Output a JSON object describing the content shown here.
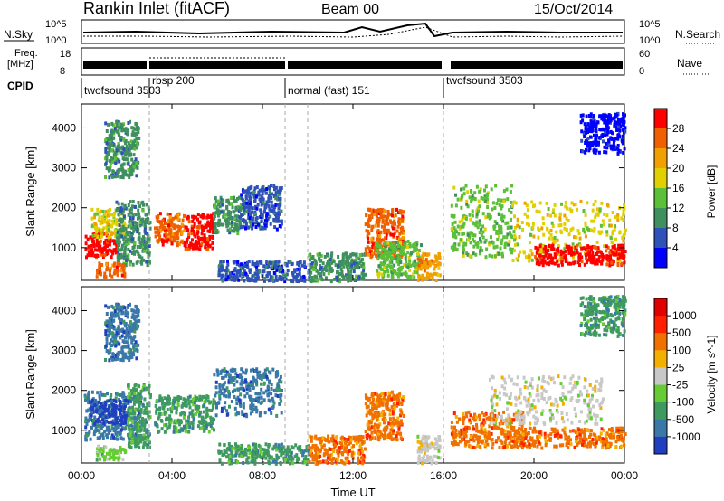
{
  "header": {
    "station": "Rankin Inlet (fitACF)",
    "beam": "Beam 00",
    "date": "15/Oct/2014"
  },
  "status_panels": {
    "nsky_label": "N.Sky",
    "nsky_ticks": [
      "10^5",
      "10^0"
    ],
    "nsearch_label": "N.Search",
    "nsearch_ticks": [
      "10^5",
      "10^0"
    ],
    "freq_label": [
      "Freq.",
      "[MHz]"
    ],
    "freq_ticks": [
      "18",
      "8"
    ],
    "nave_label": "Nave",
    "nave_ticks": [
      "60",
      "0"
    ],
    "cpid_label": "CPID",
    "cpid_segments": [
      {
        "label": "twofsound 3503",
        "start_h": 0.0,
        "end_h": 3.0
      },
      {
        "label": "rbsp 200",
        "start_h": 3.0,
        "end_h": 9.0
      },
      {
        "label": "normal (fast) 151",
        "start_h": 9.0,
        "end_h": 16.0
      },
      {
        "label": "twofsound 3503",
        "start_h": 16.0,
        "end_h": 24.0
      }
    ]
  },
  "chart_data": [
    {
      "type": "heatmap",
      "title": "",
      "xlabel": "",
      "ylabel": "Slant Range [km]",
      "xlim": [
        0,
        24
      ],
      "ylim": [
        180,
        4600
      ],
      "yticks": [
        1000,
        2000,
        3000,
        4000
      ],
      "colorbar": {
        "label": "Power [dB]",
        "ticks": [
          "4",
          "8",
          "12",
          "16",
          "20",
          "24",
          "28"
        ],
        "colors": [
          "#0000ff",
          "#2e52b8",
          "#3f8f5f",
          "#5cbf3a",
          "#e0d000",
          "#f0a000",
          "#f06000",
          "#ff0000"
        ]
      },
      "blobs": [
        {
          "t0": 0.1,
          "t1": 1.5,
          "r0": 800,
          "r1": 1400,
          "c": 7
        },
        {
          "t0": 0.4,
          "t1": 1.9,
          "r0": 1300,
          "r1": 2000,
          "c": 4
        },
        {
          "t0": 1.5,
          "t1": 3.0,
          "r0": 600,
          "r1": 2200,
          "c": 2
        },
        {
          "t0": 0.6,
          "t1": 1.9,
          "r0": 300,
          "r1": 650,
          "c": 6
        },
        {
          "t0": 3.2,
          "t1": 4.5,
          "r0": 1100,
          "r1": 1900,
          "c": 6
        },
        {
          "t0": 4.5,
          "t1": 5.8,
          "r0": 1000,
          "r1": 1900,
          "c": 7
        },
        {
          "t0": 5.8,
          "t1": 7.0,
          "r0": 1400,
          "r1": 2300,
          "c": 2
        },
        {
          "t0": 7.0,
          "t1": 8.8,
          "r0": 1500,
          "r1": 2600,
          "c": 1
        },
        {
          "t0": 6.0,
          "t1": 10.0,
          "r0": 200,
          "r1": 700,
          "c": 1
        },
        {
          "t0": 10.0,
          "t1": 12.5,
          "r0": 200,
          "r1": 900,
          "c": 2
        },
        {
          "t0": 12.5,
          "t1": 14.2,
          "r0": 800,
          "r1": 2000,
          "c": 6
        },
        {
          "t0": 13.0,
          "t1": 15.0,
          "r0": 300,
          "r1": 1200,
          "c": 3
        },
        {
          "t0": 14.8,
          "t1": 15.8,
          "r0": 200,
          "r1": 900,
          "c": 5
        },
        {
          "t0": 16.3,
          "t1": 19.0,
          "r0": 800,
          "r1": 2600,
          "c": 3
        },
        {
          "t0": 19.0,
          "t1": 24.0,
          "r0": 700,
          "r1": 2200,
          "c": 4
        },
        {
          "t0": 20.0,
          "t1": 24.0,
          "r0": 600,
          "r1": 1100,
          "c": 7
        },
        {
          "t0": 1.0,
          "t1": 2.5,
          "r0": 2800,
          "r1": 4200,
          "c": 2
        },
        {
          "t0": 22.0,
          "t1": 24.0,
          "r0": 3400,
          "r1": 4400,
          "c": 0
        }
      ]
    },
    {
      "type": "heatmap",
      "title": "",
      "xlabel": "Time UT",
      "ylabel": "Slant Range [km]",
      "xlim": [
        0,
        24
      ],
      "ylim": [
        180,
        4600
      ],
      "yticks": [
        1000,
        2000,
        3000,
        4000
      ],
      "xticks": [
        "00:00",
        "04:00",
        "08:00",
        "12:00",
        "16:00",
        "20:00",
        "00:00"
      ],
      "colorbar": {
        "label": "Velocity [m s^-1]",
        "ticks": [
          "1000",
          "500",
          "100",
          "25",
          "-25",
          "-100",
          "-500",
          "-1000"
        ],
        "colors": [
          "#1f3fbf",
          "#3a78a8",
          "#3f9a60",
          "#66cc33",
          "#c8c8c8",
          "#f4b000",
          "#f07000",
          "#ff2000",
          "#e00000"
        ]
      },
      "blobs": [
        {
          "t0": 0.1,
          "t1": 2.6,
          "r0": 800,
          "r1": 2000,
          "c": 1
        },
        {
          "t0": 0.3,
          "t1": 2.0,
          "r0": 1200,
          "r1": 1800,
          "c": 0
        },
        {
          "t0": 2.0,
          "t1": 3.0,
          "r0": 600,
          "r1": 2200,
          "c": 2
        },
        {
          "t0": 0.6,
          "t1": 1.9,
          "r0": 300,
          "r1": 650,
          "c": 3
        },
        {
          "t0": 3.2,
          "t1": 5.8,
          "r0": 1000,
          "r1": 1900,
          "c": 2
        },
        {
          "t0": 5.8,
          "t1": 8.8,
          "r0": 1400,
          "r1": 2600,
          "c": 1
        },
        {
          "t0": 6.0,
          "t1": 10.0,
          "r0": 200,
          "r1": 700,
          "c": 2
        },
        {
          "t0": 10.0,
          "t1": 12.5,
          "r0": 200,
          "r1": 900,
          "c": 6
        },
        {
          "t0": 12.5,
          "t1": 14.2,
          "r0": 800,
          "r1": 2000,
          "c": 6
        },
        {
          "t0": 14.8,
          "t1": 15.8,
          "r0": 200,
          "r1": 900,
          "c": 4
        },
        {
          "t0": 16.3,
          "t1": 19.5,
          "r0": 600,
          "r1": 1500,
          "c": 6
        },
        {
          "t0": 18.0,
          "t1": 23.0,
          "r0": 1200,
          "r1": 2400,
          "c": 4
        },
        {
          "t0": 19.0,
          "t1": 24.0,
          "r0": 600,
          "r1": 1100,
          "c": 6
        },
        {
          "t0": 1.0,
          "t1": 2.5,
          "r0": 2800,
          "r1": 4200,
          "c": 1
        },
        {
          "t0": 22.0,
          "t1": 24.0,
          "r0": 3400,
          "r1": 4400,
          "c": 2
        }
      ]
    }
  ]
}
